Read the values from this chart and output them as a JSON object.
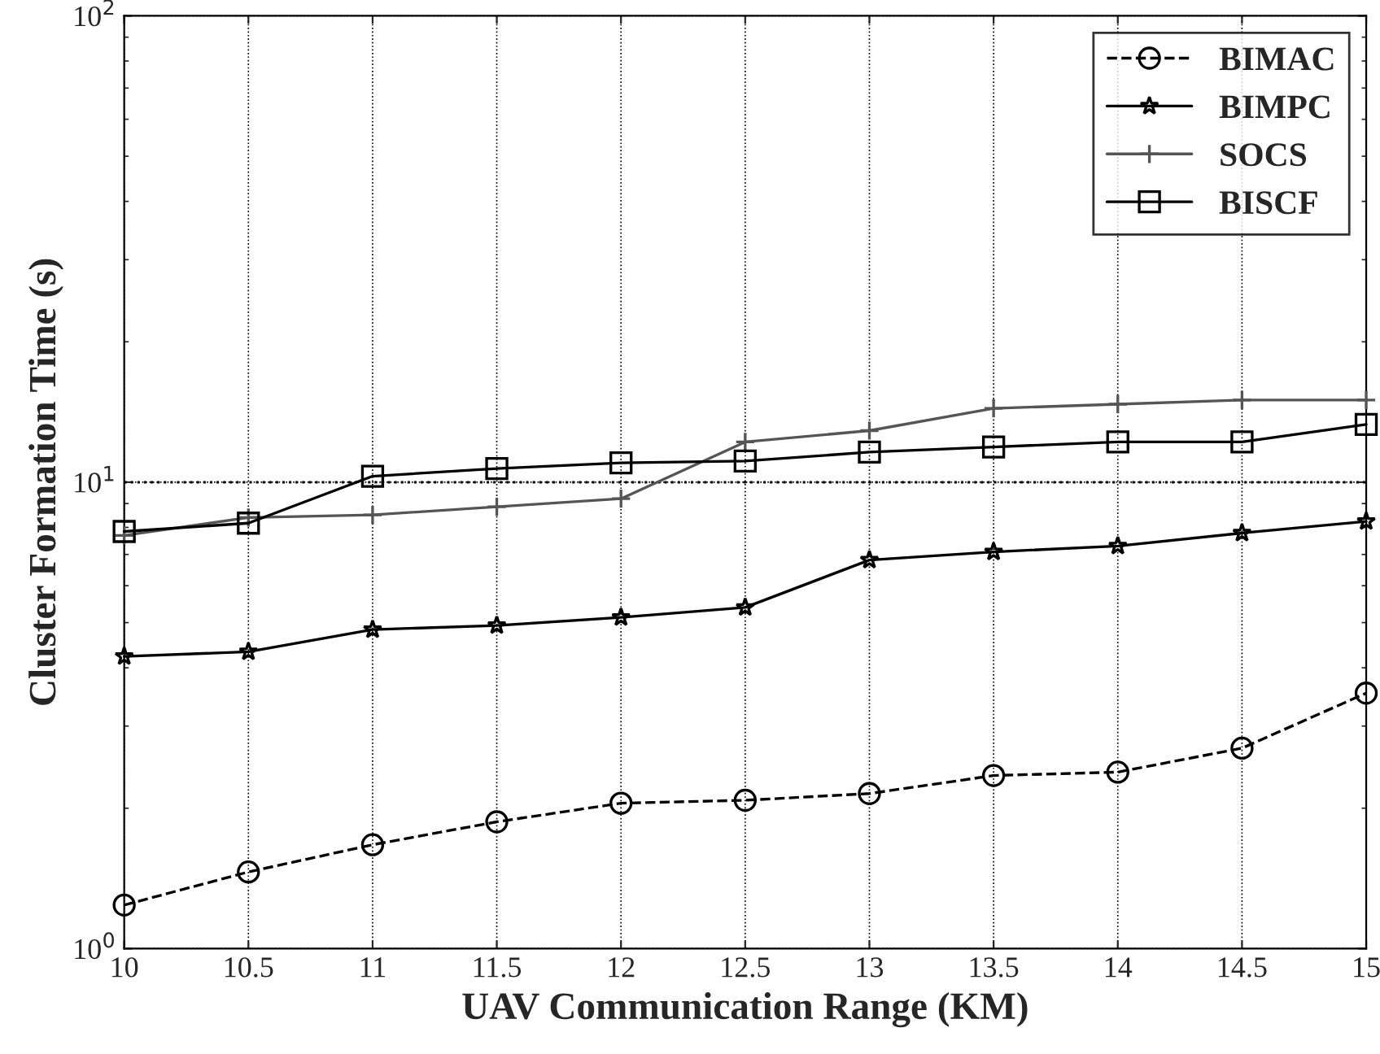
{
  "chart_data": {
    "type": "line",
    "xlabel": "UAV Communication Range (KM)",
    "ylabel": "Cluster Formation Time (s)",
    "x": [
      10,
      10.5,
      11,
      11.5,
      12,
      12.5,
      13,
      13.5,
      14,
      14.5,
      15
    ],
    "series": [
      {
        "name": "BIMAC",
        "color": "#000000",
        "marker": "circle",
        "line_style": "dashed",
        "values": [
          1.24,
          1.46,
          1.67,
          1.87,
          2.05,
          2.08,
          2.15,
          2.35,
          2.39,
          2.69,
          3.53
        ]
      },
      {
        "name": "BIMPC",
        "color": "#000000",
        "marker": "star",
        "line_style": "solid",
        "values": [
          4.23,
          4.33,
          4.83,
          4.93,
          5.13,
          5.39,
          6.81,
          7.09,
          7.3,
          7.78,
          8.24
        ]
      },
      {
        "name": "SOCS",
        "color": "#555555",
        "marker": "cross",
        "line_style": "solid",
        "values": [
          7.69,
          8.4,
          8.51,
          8.86,
          9.22,
          12.2,
          12.9,
          14.4,
          14.7,
          15.0,
          15.0
        ]
      },
      {
        "name": "BISCF",
        "color": "#000000",
        "marker": "square",
        "line_style": "solid",
        "values": [
          7.84,
          8.17,
          10.3,
          10.7,
          11.0,
          11.1,
          11.6,
          11.9,
          12.2,
          12.2,
          13.3
        ]
      }
    ],
    "log": "y",
    "xlim": [
      10,
      15
    ],
    "ylim": [
      1,
      100
    ],
    "xticks": [
      10,
      {
        "value": 10.5,
        "label": "10.5"
      },
      11,
      {
        "value": 11.5,
        "label": "11.5"
      },
      12,
      {
        "value": 12.5,
        "label": "12.5"
      },
      13,
      {
        "value": 13.5,
        "label": "13.5"
      },
      14,
      {
        "value": 14.5,
        "label": "14.5"
      },
      15
    ],
    "yticks": [
      {
        "value": 1,
        "label": "10$^{0}$"
      },
      {
        "value": 10,
        "label": "10$^{1}$"
      },
      {
        "value": 100,
        "label": "10$^{2}$"
      }
    ],
    "ref_lines": [
      {
        "axis": "y",
        "value": 10,
        "label": null,
        "color": "#000000",
        "line_style": "dotted"
      }
    ],
    "grid": true,
    "legend": "top right"
  }
}
